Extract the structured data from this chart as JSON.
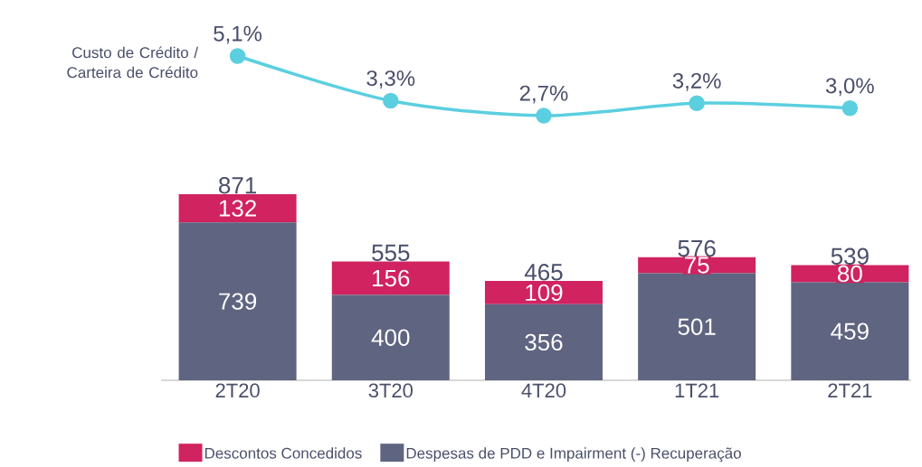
{
  "chart_data": [
    {
      "type": "line",
      "categories": [
        null,
        null,
        null,
        null,
        null
      ],
      "series": [
        {
          "name": "Custo de Crédito / Carteira de Crédito",
          "marker": "circle",
          "color": "#5bcfe0",
          "values": [
            5.1,
            3.3,
            2.7,
            3.2,
            3.0
          ],
          "value_labels": [
            "5,1%",
            "3,3%",
            "2,7%",
            "3,2%",
            "3,0%"
          ]
        }
      ]
    },
    {
      "type": "bar",
      "stacked": true,
      "legend": "bottom",
      "categories": [
        "2T20",
        "3T20",
        "4T20",
        "1T21",
        "2T21"
      ],
      "series": [
        {
          "name": "Despesas de PDD e Impairment (-) Recuperação",
          "color": "#5f6480",
          "values": [
            739,
            400,
            356,
            501,
            459
          ],
          "value_labels": [
            "739",
            "400",
            "356",
            "501",
            "459"
          ]
        },
        {
          "name": "Descontos Concedidos",
          "color": "#d0235f",
          "values": [
            132,
            156,
            109,
            75,
            80
          ],
          "value_labels": [
            "132",
            "156",
            "109",
            "75",
            "80"
          ]
        }
      ],
      "totals": [
        "871",
        "555",
        "465",
        "576",
        "539"
      ]
    }
  ]
}
